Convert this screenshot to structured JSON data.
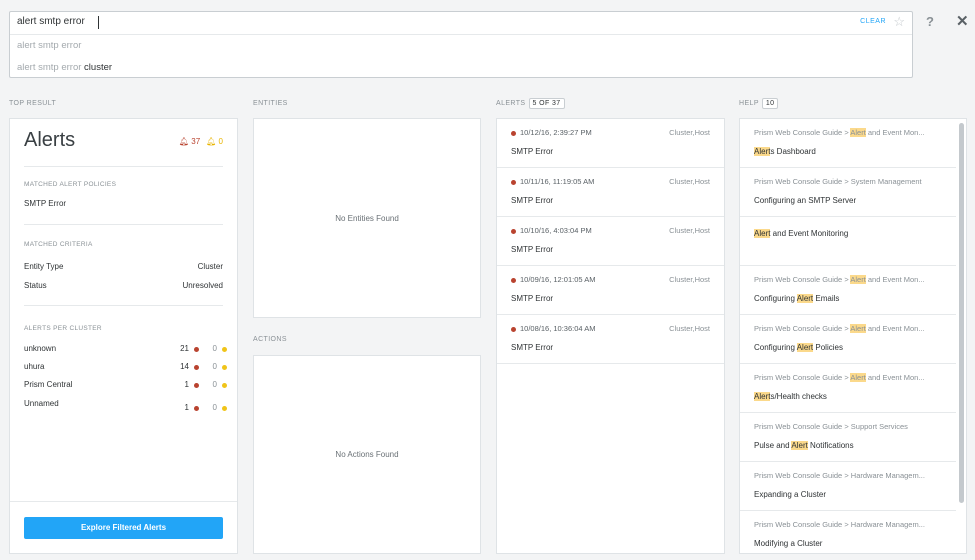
{
  "search": {
    "query": "alert smtp error",
    "clear_label": "CLEAR",
    "suggestions": [
      {
        "base": "alert smtp error",
        "extra": ""
      },
      {
        "base": "alert smtp error",
        "extra": " cluster"
      }
    ]
  },
  "toolbar": {
    "help_glyph": "?",
    "close_glyph": "✕"
  },
  "sections": {
    "top_result": "TOP RESULT",
    "entities": "ENTITIES",
    "actions": "ACTIONS",
    "alerts": "ALERTS",
    "alerts_badge": "5 OF 37",
    "help": "HELP",
    "help_badge": "10"
  },
  "top_result": {
    "title": "Alerts",
    "critical_count": "37",
    "warning_count": "0",
    "matched_policies_label": "MATCHED ALERT POLICIES",
    "matched_policy": "SMTP Error",
    "matched_criteria_label": "MATCHED CRITERIA",
    "criteria": [
      {
        "key": "Entity Type",
        "value": "Cluster"
      },
      {
        "key": "Status",
        "value": "Unresolved"
      }
    ],
    "per_cluster_label": "ALERTS PER CLUSTER",
    "clusters": [
      {
        "name": "unknown",
        "critical": "21",
        "warning": "0"
      },
      {
        "name": "uhura",
        "critical": "14",
        "warning": "0"
      },
      {
        "name": "Prism Central",
        "critical": "1",
        "warning": "0"
      },
      {
        "name": "Unnamed",
        "critical": "1",
        "warning": "0"
      }
    ],
    "explore_button": "Explore Filtered Alerts"
  },
  "entities": {
    "empty": "No Entities Found"
  },
  "actions": {
    "empty": "No Actions Found"
  },
  "alerts": [
    {
      "time": "10/12/16, 2:39:27 PM",
      "entity": "Cluster,Host",
      "title": "SMTP Error"
    },
    {
      "time": "10/11/16, 11:19:05 AM",
      "entity": "Cluster,Host",
      "title": "SMTP Error"
    },
    {
      "time": "10/10/16, 4:03:04 PM",
      "entity": "Cluster,Host",
      "title": "SMTP Error"
    },
    {
      "time": "10/09/16, 12:01:05 AM",
      "entity": "Cluster,Host",
      "title": "SMTP Error"
    },
    {
      "time": "10/08/16, 10:36:04 AM",
      "entity": "Cluster,Host",
      "title": "SMTP Error"
    }
  ],
  "help": [
    {
      "path": [
        {
          "t": "Prism Web Console Guide > "
        },
        {
          "t": "Alert",
          "m": true
        },
        {
          "t": " and Event Mon..."
        }
      ],
      "title": [
        {
          "t": "Alert",
          "m": true
        },
        {
          "t": "s Dashboard"
        }
      ]
    },
    {
      "path": [
        {
          "t": "Prism Web Console Guide > System Management"
        }
      ],
      "title": [
        {
          "t": "Configuring an SMTP Server"
        }
      ]
    },
    {
      "path": [],
      "title": [
        {
          "t": "Alert",
          "m": true
        },
        {
          "t": " and Event Monitoring"
        }
      ]
    },
    {
      "path": [
        {
          "t": "Prism Web Console Guide > "
        },
        {
          "t": "Alert",
          "m": true
        },
        {
          "t": " and Event Mon..."
        }
      ],
      "title": [
        {
          "t": "Configuring "
        },
        {
          "t": "Alert",
          "m": true
        },
        {
          "t": " Emails"
        }
      ]
    },
    {
      "path": [
        {
          "t": "Prism Web Console Guide > "
        },
        {
          "t": "Alert",
          "m": true
        },
        {
          "t": " and Event Mon..."
        }
      ],
      "title": [
        {
          "t": "Configuring "
        },
        {
          "t": "Alert",
          "m": true
        },
        {
          "t": " Policies"
        }
      ]
    },
    {
      "path": [
        {
          "t": "Prism Web Console Guide > "
        },
        {
          "t": "Alert",
          "m": true
        },
        {
          "t": " and Event Mon..."
        }
      ],
      "title": [
        {
          "t": "Alert",
          "m": true
        },
        {
          "t": "s/Health checks"
        }
      ]
    },
    {
      "path": [
        {
          "t": "Prism Web Console Guide > Support Services"
        }
      ],
      "title": [
        {
          "t": "Pulse and "
        },
        {
          "t": "Alert",
          "m": true
        },
        {
          "t": " Notifications"
        }
      ]
    },
    {
      "path": [
        {
          "t": "Prism Web Console Guide > Hardware Managem..."
        }
      ],
      "title": [
        {
          "t": "Expanding a Cluster"
        }
      ]
    },
    {
      "path": [
        {
          "t": "Prism Web Console Guide > Hardware Managem..."
        }
      ],
      "title": [
        {
          "t": "Modifying a Cluster"
        }
      ]
    }
  ],
  "colors": {
    "accent": "#22a5f7",
    "critical": "#b9432f",
    "warning": "#f0c419",
    "highlight": "#fbd98b"
  }
}
